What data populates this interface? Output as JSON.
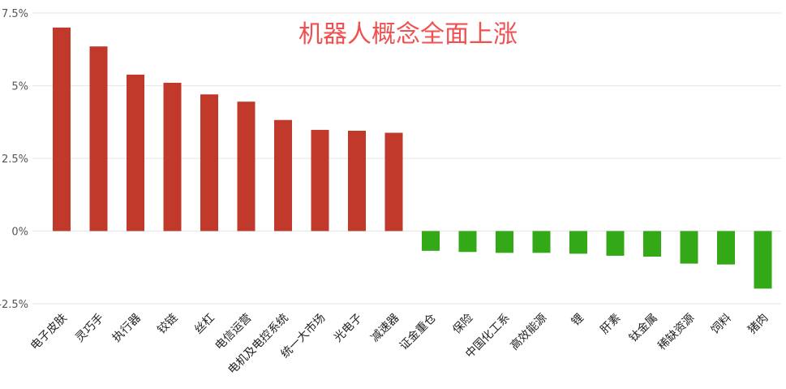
{
  "colors": {
    "positive": "#c0392b",
    "negative": "#33a918",
    "title": "#f05050",
    "grid": "#e6e6e6"
  },
  "chart_data": {
    "type": "bar",
    "title": "机器人概念全面上涨",
    "xlabel": "",
    "ylabel": "",
    "ylim": [
      -2.5,
      7.5
    ],
    "yticks": [
      "7.5%",
      "5%",
      "2.5%",
      "0%",
      "-2.5%"
    ],
    "ytick_values": [
      7.5,
      5,
      2.5,
      0,
      -2.5
    ],
    "grid": true,
    "categories": [
      "电子皮肤",
      "灵巧手",
      "执行器",
      "铰链",
      "丝杠",
      "电信运营",
      "电机及电控系统",
      "统一大市场",
      "光电子",
      "减速器",
      "证金重仓",
      "保险",
      "中国化工系",
      "高效能源",
      "锂",
      "肝素",
      "钛金属",
      "稀缺资源",
      "饲料",
      "猪肉"
    ],
    "values": [
      7.0,
      6.35,
      5.38,
      5.1,
      4.7,
      4.45,
      3.82,
      3.48,
      3.45,
      3.38,
      -0.68,
      -0.72,
      -0.75,
      -0.75,
      -0.78,
      -0.85,
      -0.88,
      -1.12,
      -1.15,
      -1.98
    ]
  }
}
